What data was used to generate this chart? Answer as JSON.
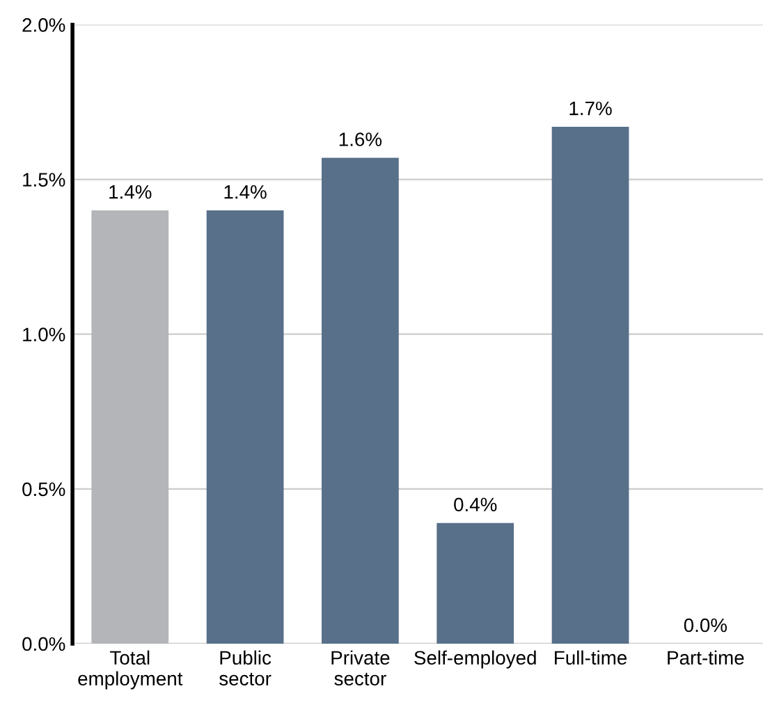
{
  "chart_data": {
    "type": "bar",
    "categories": [
      "Total\nemployment",
      "Public\nsector",
      "Private\nsector",
      "Self-employed",
      "Full-time",
      "Part-time"
    ],
    "values": [
      1.4,
      1.4,
      1.57,
      0.39,
      1.67,
      0.0
    ],
    "value_labels": [
      "1.4%",
      "1.4%",
      "1.6%",
      "0.4%",
      "1.7%",
      "0.0%"
    ],
    "colors": [
      "#b3b5b8",
      "#587089",
      "#587089",
      "#587089",
      "#587089",
      "#587089"
    ],
    "ylim": [
      0,
      2.0
    ],
    "yticks": [
      {
        "value": 0,
        "label": "0.0%"
      },
      {
        "value": 0.5,
        "label": "0.5%"
      },
      {
        "value": 1.0,
        "label": "1.0%"
      },
      {
        "value": 1.5,
        "label": "1.5%"
      },
      {
        "value": 2.0,
        "label": "2.0%"
      }
    ],
    "grid": "y"
  }
}
